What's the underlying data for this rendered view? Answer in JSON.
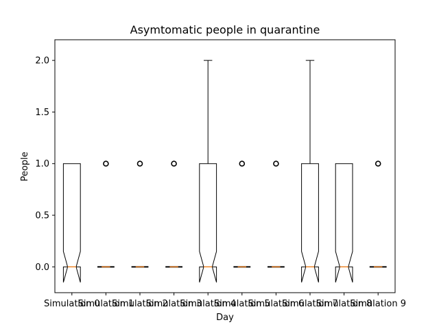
{
  "chart_data": {
    "type": "box",
    "title": "Asymtomatic people in quarantine",
    "xlabel": "Day",
    "ylabel": "People",
    "ylim": [
      -0.25,
      2.2
    ],
    "yticks": [
      0.0,
      0.5,
      1.0,
      1.5,
      2.0
    ],
    "ytick_labels": [
      "0.0",
      "0.5",
      "1.0",
      "1.5",
      "2.0"
    ],
    "notched": true,
    "categories": [
      "Simulation 0",
      "Simulation 1",
      "Simulation 2",
      "Simulation 3",
      "Simulation 4",
      "Simulation 5",
      "Simulation 6",
      "Simulation 7",
      "Simulation 8",
      "Simulation 9"
    ],
    "boxes": [
      {
        "category": "Simulation 0",
        "whisker_low": 0,
        "q1": 0,
        "median": 0,
        "q3": 1,
        "whisker_high": 1,
        "notch_low": -0.15,
        "notch_high": 0.15,
        "outliers": []
      },
      {
        "category": "Simulation 1",
        "whisker_low": 0,
        "q1": 0,
        "median": 0,
        "q3": 0,
        "whisker_high": 0,
        "notch_low": 0,
        "notch_high": 0,
        "outliers": [
          1
        ]
      },
      {
        "category": "Simulation 2",
        "whisker_low": 0,
        "q1": 0,
        "median": 0,
        "q3": 0,
        "whisker_high": 0,
        "notch_low": 0,
        "notch_high": 0,
        "outliers": [
          1
        ]
      },
      {
        "category": "Simulation 3",
        "whisker_low": 0,
        "q1": 0,
        "median": 0,
        "q3": 0,
        "whisker_high": 0,
        "notch_low": 0,
        "notch_high": 0,
        "outliers": [
          1
        ]
      },
      {
        "category": "Simulation 4",
        "whisker_low": 0,
        "q1": 0,
        "median": 0,
        "q3": 1,
        "whisker_high": 2,
        "notch_low": -0.15,
        "notch_high": 0.15,
        "outliers": []
      },
      {
        "category": "Simulation 5",
        "whisker_low": 0,
        "q1": 0,
        "median": 0,
        "q3": 0,
        "whisker_high": 0,
        "notch_low": 0,
        "notch_high": 0,
        "outliers": [
          1
        ]
      },
      {
        "category": "Simulation 6",
        "whisker_low": 0,
        "q1": 0,
        "median": 0,
        "q3": 0,
        "whisker_high": 0,
        "notch_low": 0,
        "notch_high": 0,
        "outliers": [
          1
        ]
      },
      {
        "category": "Simulation 7",
        "whisker_low": 0,
        "q1": 0,
        "median": 0,
        "q3": 1,
        "whisker_high": 2,
        "notch_low": -0.15,
        "notch_high": 0.15,
        "outliers": []
      },
      {
        "category": "Simulation 8",
        "whisker_low": 0,
        "q1": 0,
        "median": 0,
        "q3": 1,
        "whisker_high": 1,
        "notch_low": -0.15,
        "notch_high": 0.15,
        "outliers": []
      },
      {
        "category": "Simulation 9",
        "whisker_low": 0,
        "q1": 0,
        "median": 0,
        "q3": 0,
        "whisker_high": 0,
        "notch_low": 0,
        "notch_high": 0,
        "outliers": [
          1
        ]
      }
    ],
    "grid": false,
    "colors": {
      "box": "#000000",
      "median": "#ff7f0e",
      "background": "#ffffff"
    }
  }
}
